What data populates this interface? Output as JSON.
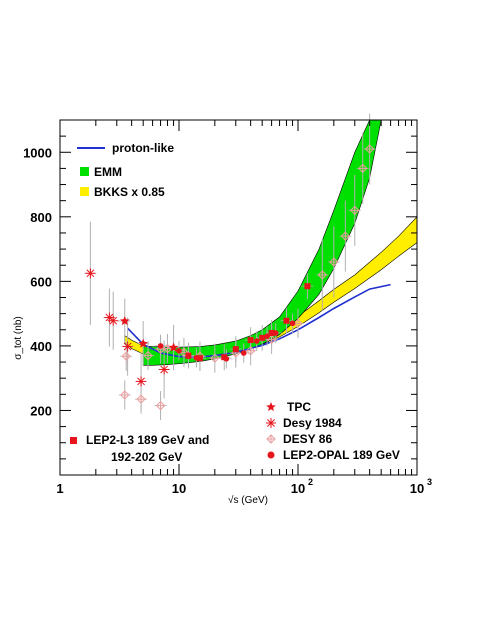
{
  "chart_data": {
    "type": "scatter",
    "xscale": "log",
    "xlim": [
      1,
      1000
    ],
    "ylim": [
      0,
      1100
    ],
    "xlabel": "√s (GeV)",
    "ylabel": "σ_tot (nb)",
    "x_ticks": [
      {
        "value": 1,
        "label": "1"
      },
      {
        "value": 10,
        "label": "10"
      },
      {
        "value": 100,
        "label": "10",
        "exp": "2"
      },
      {
        "value": 1000,
        "label": "10",
        "exp": "3"
      }
    ],
    "y_ticks": [
      200,
      400,
      600,
      800,
      1000
    ],
    "legend_top": [
      {
        "key": "proton",
        "label": "proton-like",
        "color": "#1f2fd0"
      },
      {
        "key": "emm",
        "label": "EMM",
        "color": "#00e000"
      },
      {
        "key": "bkks",
        "label": "BKKS x 0.85",
        "color": "#ffee00"
      }
    ],
    "legend_bottom": [
      {
        "key": "tpc",
        "label": "TPC"
      },
      {
        "key": "desy1984",
        "label": "Desy 1984"
      },
      {
        "key": "desy86",
        "label": "DESY 86"
      },
      {
        "key": "opal",
        "label": "LEP2-OPAL 189 GeV"
      }
    ],
    "legend_l3": [
      "LEP2-L3 189 GeV and",
      "192-202 GeV"
    ],
    "colors": {
      "data": "#e8141c",
      "faint": "#e8a0a0",
      "error": "#b0b0b0",
      "emm": "#00e000",
      "bkks": "#ffee00",
      "proton": "#1f2fd0"
    },
    "curves": {
      "proton_like": [
        [
          3.7,
          455
        ],
        [
          5,
          405
        ],
        [
          7,
          378
        ],
        [
          10,
          367
        ],
        [
          15,
          366
        ],
        [
          20,
          370
        ],
        [
          30,
          380
        ],
        [
          50,
          402
        ],
        [
          70,
          422
        ],
        [
          100,
          450
        ],
        [
          150,
          488
        ],
        [
          200,
          516
        ],
        [
          300,
          552
        ],
        [
          400,
          576
        ],
        [
          600,
          590
        ]
      ],
      "emm": {
        "x": [
          5,
          6,
          8,
          10,
          15,
          20,
          30,
          40,
          50,
          70,
          100,
          150,
          200,
          300,
          400,
          500
        ],
        "lower": [
          340,
          340,
          342,
          345,
          352,
          360,
          375,
          390,
          405,
          435,
          485,
          560,
          640,
          780,
          920,
          1100
        ],
        "upper": [
          400,
          398,
          396,
          396,
          398,
          403,
          415,
          432,
          450,
          490,
          570,
          700,
          820,
          1000,
          1100,
          1100
        ]
      },
      "bkks": {
        "x": [
          3.5,
          4,
          5,
          7,
          10,
          15,
          20,
          30,
          50,
          70,
          100,
          150,
          200,
          300,
          500,
          700,
          1000
        ],
        "lower": [
          410,
          392,
          375,
          368,
          362,
          362,
          366,
          378,
          405,
          428,
          460,
          503,
          535,
          578,
          636,
          678,
          720
        ],
        "upper": [
          432,
          418,
          400,
          388,
          385,
          388,
          394,
          408,
          435,
          460,
          492,
          540,
          575,
          620,
          690,
          740,
          800
        ]
      }
    },
    "series": {
      "tpc": [
        [
          3.5,
          477
        ],
        [
          5,
          407
        ],
        [
          9,
          395
        ]
      ],
      "desy1984": [
        [
          1.8,
          625
        ],
        [
          2.6,
          488
        ],
        [
          2.8,
          478
        ],
        [
          3.7,
          398
        ],
        [
          7.5,
          327
        ],
        [
          4.8,
          290
        ]
      ],
      "desy86": [
        [
          3.5,
          248
        ],
        [
          4.8,
          235
        ],
        [
          7,
          215
        ],
        [
          3.6,
          368
        ],
        [
          5.5,
          370
        ],
        [
          7,
          390
        ],
        [
          8,
          392
        ],
        [
          11,
          380
        ],
        [
          15,
          368
        ],
        [
          20,
          362
        ],
        [
          30,
          378
        ],
        [
          40,
          385
        ],
        [
          60,
          420
        ],
        [
          100,
          470
        ],
        [
          160,
          620
        ],
        [
          200,
          660
        ],
        [
          250,
          740
        ],
        [
          300,
          820
        ],
        [
          350,
          950
        ],
        [
          400,
          1010
        ]
      ],
      "l3": [
        [
          120,
          585
        ],
        [
          80,
          478
        ],
        [
          60,
          440
        ],
        [
          40,
          418
        ],
        [
          50,
          425
        ],
        [
          30,
          390
        ],
        [
          24,
          365
        ],
        [
          15,
          362
        ],
        [
          12,
          370
        ]
      ],
      "opal": [
        [
          7,
          400
        ],
        [
          10,
          385
        ],
        [
          12,
          368
        ],
        [
          14,
          363
        ],
        [
          25,
          360
        ],
        [
          35,
          378
        ],
        [
          45,
          415
        ],
        [
          55,
          430
        ],
        [
          65,
          440
        ],
        [
          90,
          470
        ]
      ]
    }
  }
}
